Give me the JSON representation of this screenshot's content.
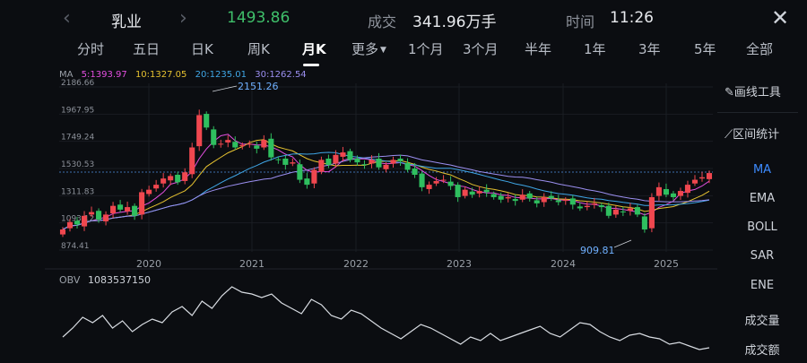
{
  "header": {
    "back_arrow": "‹",
    "forward_arrow": "›",
    "stock_name": "乳业",
    "price": "1493.86",
    "volume_label": "成交",
    "volume_value": "341.96万手",
    "time_label": "时间",
    "time_value": "11:26",
    "close_icon": "✕"
  },
  "tabs": [
    {
      "label": "分时"
    },
    {
      "label": "五日"
    },
    {
      "label": "日K"
    },
    {
      "label": "周K"
    },
    {
      "label": "月K",
      "active": true
    },
    {
      "label": "更多"
    },
    {
      "label": "1个月"
    },
    {
      "label": "3个月"
    },
    {
      "label": "半年"
    },
    {
      "label": "1年"
    },
    {
      "label": "3年"
    },
    {
      "label": "5年"
    },
    {
      "label": "全部"
    }
  ],
  "ma_legend": {
    "label": "MA",
    "ma5": "5:1393.97",
    "ma10": "10:1327.05",
    "ma20": "20:1235.01",
    "ma30": "30:1262.54"
  },
  "colors": {
    "up": "#f0474f",
    "down": "#2fbf5f",
    "ma5": "#e34fe0",
    "ma10": "#e6c230",
    "ma20": "#3fa6e6",
    "ma30": "#9b8ff0",
    "accent": "#3d8bff"
  },
  "side_panel": {
    "draw_tool": "画线工具",
    "range_stat": "区间统计",
    "indicators": [
      "MA",
      "EMA",
      "BOLL",
      "SAR",
      "ENE"
    ],
    "bottom": [
      "成交量",
      "成交额"
    ]
  },
  "obv": {
    "label": "OBV",
    "value": "1083537150"
  },
  "chart_data": {
    "type": "candlestick",
    "y_ticks": [
      "2186.66",
      "1967.95",
      "1749.24",
      "1530.53",
      "1311.83",
      "1093.12",
      "874.41"
    ],
    "ylim": [
      874.41,
      2186.66
    ],
    "x_ticks": [
      "2020",
      "2021",
      "2022",
      "2023",
      "2024",
      "2025"
    ],
    "annotations": {
      "high": "2151.26",
      "low": "909.81"
    },
    "reference_price": 1493.86
  }
}
